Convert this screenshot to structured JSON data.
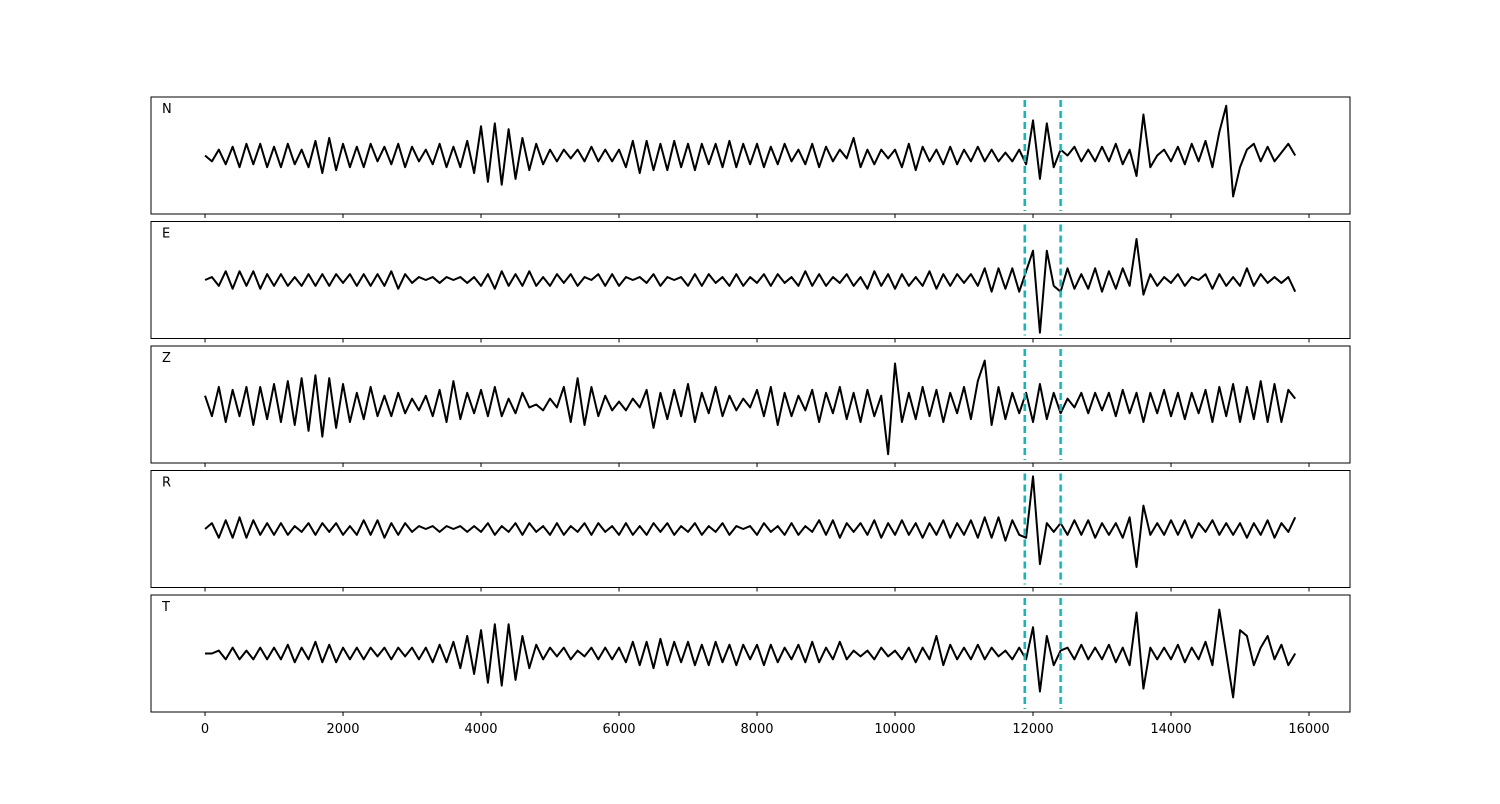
{
  "chart_data": {
    "type": "line",
    "x": [
      0,
      100,
      200,
      300,
      400,
      500,
      600,
      700,
      800,
      900,
      1000,
      1100,
      1200,
      1300,
      1400,
      1500,
      1600,
      1700,
      1800,
      1900,
      2000,
      2100,
      2200,
      2300,
      2400,
      2500,
      2600,
      2700,
      2800,
      2900,
      3000,
      3100,
      3200,
      3300,
      3400,
      3500,
      3600,
      3700,
      3800,
      3900,
      4000,
      4100,
      4200,
      4300,
      4400,
      4500,
      4600,
      4700,
      4800,
      4900,
      5000,
      5100,
      5200,
      5300,
      5400,
      5500,
      5600,
      5700,
      5800,
      5900,
      6000,
      6100,
      6200,
      6300,
      6400,
      6500,
      6600,
      6700,
      6800,
      6900,
      7000,
      7100,
      7200,
      7300,
      7400,
      7500,
      7600,
      7700,
      7800,
      7900,
      8000,
      8100,
      8200,
      8300,
      8400,
      8500,
      8600,
      8700,
      8800,
      8900,
      9000,
      9100,
      9200,
      9300,
      9400,
      9500,
      9600,
      9700,
      9800,
      9900,
      10000,
      10100,
      10200,
      10300,
      10400,
      10500,
      10600,
      10700,
      10800,
      10900,
      11000,
      11100,
      11200,
      11300,
      11400,
      11500,
      11600,
      11700,
      11800,
      11900,
      12000,
      12100,
      12200,
      12300,
      12400,
      12500,
      12600,
      12700,
      12800,
      12900,
      13000,
      13100,
      13200,
      13300,
      13400,
      13500,
      13600,
      13700,
      13800,
      13900,
      14000,
      14100,
      14200,
      14300,
      14400,
      14500,
      14600,
      14700,
      14800,
      14900,
      15000,
      15100,
      15200,
      15300,
      15400,
      15500,
      15600,
      15700,
      15800
    ],
    "series": [
      {
        "name": "N",
        "color": "#000000",
        "values": [
          0,
          -0.1,
          0.1,
          -0.15,
          0.15,
          -0.2,
          0.2,
          -0.15,
          0.2,
          -0.2,
          0.15,
          -0.2,
          0.2,
          -0.15,
          0.1,
          -0.2,
          0.25,
          -0.3,
          0.3,
          -0.25,
          0.2,
          -0.2,
          0.15,
          -0.2,
          0.2,
          -0.1,
          0.15,
          -0.15,
          0.2,
          -0.2,
          0.15,
          -0.1,
          0.1,
          -0.15,
          0.2,
          -0.2,
          0.15,
          -0.2,
          0.25,
          -0.3,
          0.5,
          -0.45,
          0.55,
          -0.5,
          0.45,
          -0.4,
          0.3,
          -0.25,
          0.2,
          -0.15,
          0.1,
          -0.1,
          0.1,
          -0.05,
          0.1,
          -0.1,
          0.15,
          -0.1,
          0.1,
          -0.1,
          0.1,
          -0.2,
          0.25,
          -0.3,
          0.25,
          -0.25,
          0.2,
          -0.25,
          0.25,
          -0.2,
          0.2,
          -0.25,
          0.2,
          -0.15,
          0.2,
          -0.2,
          0.25,
          -0.2,
          0.2,
          -0.15,
          0.2,
          -0.2,
          0.15,
          -0.15,
          0.2,
          -0.1,
          0.1,
          -0.15,
          0.2,
          -0.2,
          0.15,
          -0.1,
          0.1,
          -0.05,
          0.3,
          -0.2,
          0.1,
          -0.15,
          0.1,
          -0.05,
          0.1,
          -0.2,
          0.2,
          -0.25,
          0.15,
          -0.1,
          0.1,
          -0.15,
          0.15,
          -0.15,
          0.1,
          -0.1,
          0.15,
          -0.1,
          0.1,
          -0.1,
          0.05,
          -0.1,
          0.1,
          -0.15,
          0.6,
          -0.4,
          0.55,
          -0.2,
          0.1,
          0,
          0.15,
          -0.1,
          0.1,
          -0.1,
          0.15,
          -0.1,
          0.2,
          -0.15,
          0.1,
          -0.35,
          0.7,
          -0.2,
          0,
          0.1,
          -0.1,
          0.15,
          -0.15,
          0.2,
          -0.1,
          0.25,
          -0.2,
          0.4,
          0.85,
          -0.7,
          -0.2,
          0.1,
          0.2,
          -0.1,
          0.15,
          -0.1,
          0.05,
          0.2,
          0
        ]
      },
      {
        "name": "E",
        "color": "#000000",
        "values": [
          0,
          0.05,
          -0.1,
          0.15,
          -0.15,
          0.15,
          -0.1,
          0.15,
          -0.15,
          0.1,
          -0.1,
          0.1,
          -0.1,
          0.05,
          -0.1,
          0.1,
          -0.1,
          0.1,
          -0.1,
          0.1,
          -0.05,
          0.1,
          -0.1,
          0.1,
          -0.1,
          0.1,
          -0.1,
          0.15,
          -0.15,
          0.1,
          -0.05,
          0.05,
          0,
          0.05,
          -0.05,
          0.05,
          0,
          0.05,
          -0.05,
          0.05,
          -0.1,
          0.1,
          -0.15,
          0.15,
          -0.1,
          0.1,
          -0.1,
          0.15,
          -0.1,
          0.05,
          -0.1,
          0.1,
          -0.05,
          0.1,
          -0.1,
          0.05,
          0,
          0.1,
          -0.1,
          0.1,
          -0.1,
          0.05,
          0,
          0.05,
          -0.05,
          0.1,
          -0.1,
          0.05,
          0,
          0.05,
          -0.1,
          0.1,
          -0.1,
          0.1,
          -0.05,
          0.05,
          -0.1,
          0.1,
          -0.1,
          0.05,
          -0.05,
          0.1,
          -0.1,
          0.1,
          -0.05,
          0.05,
          -0.1,
          0.15,
          -0.1,
          0.1,
          -0.1,
          0.05,
          -0.05,
          0.1,
          -0.1,
          0.05,
          -0.15,
          0.15,
          -0.1,
          0.1,
          -0.15,
          0.1,
          -0.1,
          0.05,
          -0.1,
          0.15,
          -0.15,
          0.1,
          -0.1,
          0.1,
          -0.05,
          0.1,
          -0.1,
          0.2,
          -0.2,
          0.2,
          -0.15,
          0.2,
          -0.2,
          0.15,
          0.5,
          -0.9,
          0.5,
          -0.1,
          -0.2,
          0.2,
          -0.15,
          0.1,
          -0.15,
          0.2,
          -0.2,
          0.15,
          -0.15,
          0.2,
          -0.1,
          0.7,
          -0.25,
          0.1,
          -0.1,
          0.05,
          -0.05,
          0.1,
          -0.1,
          0.05,
          0,
          0.1,
          -0.15,
          0.1,
          -0.1,
          0.05,
          -0.1,
          0.2,
          -0.1,
          0.1,
          -0.05,
          0.05,
          -0.05,
          0.05,
          -0.2
        ]
      },
      {
        "name": "Z",
        "color": "#000000",
        "values": [
          0.15,
          -0.2,
          0.3,
          -0.3,
          0.25,
          -0.2,
          0.3,
          -0.35,
          0.3,
          -0.25,
          0.35,
          -0.3,
          0.4,
          -0.35,
          0.45,
          -0.45,
          0.5,
          -0.55,
          0.45,
          -0.4,
          0.35,
          -0.3,
          0.2,
          -0.25,
          0.3,
          -0.2,
          0.15,
          -0.2,
          0.2,
          -0.15,
          0.1,
          -0.1,
          0.15,
          -0.2,
          0.25,
          -0.3,
          0.4,
          -0.25,
          0.2,
          -0.15,
          0.25,
          -0.2,
          0.3,
          -0.2,
          0.1,
          -0.15,
          0.2,
          -0.05,
          0,
          -0.1,
          0.1,
          -0.05,
          0.3,
          -0.3,
          0.45,
          -0.35,
          0.3,
          -0.2,
          0.15,
          -0.1,
          0.05,
          -0.1,
          0.1,
          -0.05,
          0.25,
          -0.4,
          0.2,
          -0.25,
          0.25,
          -0.2,
          0.35,
          -0.3,
          0.2,
          -0.15,
          0.3,
          -0.2,
          0.15,
          -0.1,
          0.1,
          -0.05,
          0.25,
          -0.2,
          0.3,
          -0.35,
          0.2,
          -0.2,
          0.15,
          -0.1,
          0.25,
          -0.3,
          0.2,
          -0.15,
          0.3,
          -0.25,
          0.2,
          -0.3,
          0.25,
          -0.2,
          0.15,
          -0.85,
          0.7,
          -0.3,
          0.2,
          -0.25,
          0.3,
          -0.2,
          0.25,
          -0.3,
          0.2,
          -0.15,
          0.3,
          -0.25,
          0.4,
          0.75,
          -0.35,
          0.3,
          -0.25,
          0.2,
          -0.15,
          0.2,
          -0.3,
          0.35,
          -0.25,
          0.2,
          -0.15,
          0.1,
          -0.05,
          0.2,
          -0.15,
          0.2,
          -0.1,
          0.2,
          -0.2,
          0.25,
          -0.15,
          0.2,
          -0.3,
          0.2,
          -0.15,
          0.25,
          -0.2,
          0.2,
          -0.25,
          0.2,
          -0.15,
          0.25,
          -0.3,
          0.3,
          -0.2,
          0.35,
          -0.3,
          0.3,
          -0.25,
          0.4,
          -0.3,
          0.35,
          -0.3,
          0.25,
          0.1
        ]
      },
      {
        "name": "R",
        "color": "#000000",
        "values": [
          0,
          0.1,
          -0.15,
          0.15,
          -0.15,
          0.2,
          -0.15,
          0.15,
          -0.1,
          0.1,
          -0.1,
          0.1,
          -0.1,
          0.05,
          -0.05,
          0.1,
          -0.1,
          0.1,
          -0.05,
          0.1,
          -0.1,
          0.05,
          -0.1,
          0.15,
          -0.1,
          0.15,
          -0.15,
          0.1,
          -0.1,
          0.1,
          -0.05,
          0.05,
          0,
          0.05,
          -0.05,
          0.05,
          0,
          0.05,
          -0.05,
          0.05,
          -0.05,
          0.1,
          -0.1,
          0.05,
          -0.05,
          0.1,
          -0.1,
          0.1,
          -0.05,
          0.05,
          -0.1,
          0.1,
          -0.1,
          0.05,
          -0.05,
          0.1,
          -0.1,
          0.1,
          -0.05,
          0.05,
          -0.1,
          0.1,
          -0.1,
          0.05,
          -0.1,
          0.1,
          -0.05,
          0.1,
          -0.1,
          0.05,
          -0.05,
          0.1,
          -0.1,
          0.05,
          -0.05,
          0.1,
          -0.1,
          0.05,
          0,
          0.05,
          -0.1,
          0.1,
          -0.05,
          0.05,
          -0.1,
          0.1,
          -0.1,
          0.05,
          -0.05,
          0.15,
          -0.1,
          0.15,
          -0.15,
          0.1,
          -0.05,
          0.1,
          -0.1,
          0.15,
          -0.15,
          0.1,
          -0.1,
          0.15,
          -0.1,
          0.1,
          -0.15,
          0.1,
          -0.1,
          0.15,
          -0.15,
          0.1,
          -0.1,
          0.15,
          -0.15,
          0.2,
          -0.15,
          0.2,
          -0.2,
          0.15,
          -0.1,
          -0.15,
          0.9,
          -0.6,
          0.1,
          -0.05,
          0.1,
          -0.1,
          0.15,
          -0.1,
          0.15,
          -0.15,
          0.1,
          -0.1,
          0.1,
          -0.15,
          0.2,
          -0.65,
          0.4,
          -0.1,
          0.1,
          -0.1,
          0.15,
          -0.1,
          0.15,
          -0.15,
          0.1,
          -0.05,
          0.15,
          -0.1,
          0.1,
          -0.1,
          0.1,
          -0.15,
          0.1,
          -0.1,
          0.15,
          -0.15,
          0.1,
          -0.05,
          0.2
        ]
      },
      {
        "name": "T",
        "color": "#000000",
        "values": [
          0,
          0,
          0.05,
          -0.1,
          0.1,
          -0.1,
          0.05,
          -0.1,
          0.1,
          -0.1,
          0.1,
          -0.1,
          0.15,
          -0.15,
          0.1,
          -0.1,
          0.2,
          -0.15,
          0.15,
          -0.15,
          0.1,
          -0.1,
          0.1,
          -0.1,
          0.1,
          -0.05,
          0.1,
          -0.1,
          0.1,
          -0.05,
          0.1,
          -0.1,
          0.1,
          -0.15,
          0.15,
          -0.15,
          0.2,
          -0.25,
          0.3,
          -0.35,
          0.4,
          -0.5,
          0.5,
          -0.55,
          0.5,
          -0.45,
          0.3,
          -0.25,
          0.15,
          -0.1,
          0.1,
          -0.05,
          0.1,
          -0.1,
          0.05,
          -0.05,
          0.1,
          -0.1,
          0.1,
          -0.1,
          0.1,
          -0.15,
          0.2,
          -0.2,
          0.2,
          -0.25,
          0.25,
          -0.2,
          0.2,
          -0.15,
          0.2,
          -0.2,
          0.15,
          -0.2,
          0.2,
          -0.15,
          0.15,
          -0.2,
          0.15,
          -0.1,
          0.15,
          -0.2,
          0.15,
          -0.15,
          0.1,
          -0.1,
          0.15,
          -0.15,
          0.2,
          -0.15,
          0.1,
          -0.1,
          0.2,
          -0.1,
          0.05,
          -0.05,
          0.05,
          -0.1,
          0.1,
          -0.05,
          0.05,
          -0.1,
          0.1,
          -0.15,
          0.1,
          -0.1,
          0.3,
          -0.2,
          0.15,
          -0.1,
          0.1,
          -0.1,
          0.15,
          -0.1,
          0.1,
          -0.05,
          0.05,
          -0.1,
          0.1,
          -0.1,
          0.45,
          -0.65,
          0.3,
          -0.2,
          0.05,
          0.1,
          -0.1,
          0.15,
          -0.1,
          0.1,
          -0.1,
          0.15,
          -0.15,
          0.1,
          -0.2,
          0.7,
          -0.6,
          0.1,
          -0.1,
          0.1,
          -0.1,
          0.15,
          -0.15,
          0.1,
          -0.1,
          0.2,
          -0.2,
          0.75,
          0,
          -0.75,
          0.4,
          0.3,
          -0.2,
          0.1,
          0.3,
          -0.1,
          0.15,
          -0.2,
          0
        ]
      }
    ],
    "xlim": [
      -783,
      16594
    ],
    "xticks": [
      0,
      2000,
      4000,
      6000,
      8000,
      10000,
      12000,
      14000,
      16000
    ],
    "ylim": [
      -1,
      1
    ],
    "vlines": [
      11880,
      12400
    ],
    "vline_color": "#00bfbf"
  }
}
